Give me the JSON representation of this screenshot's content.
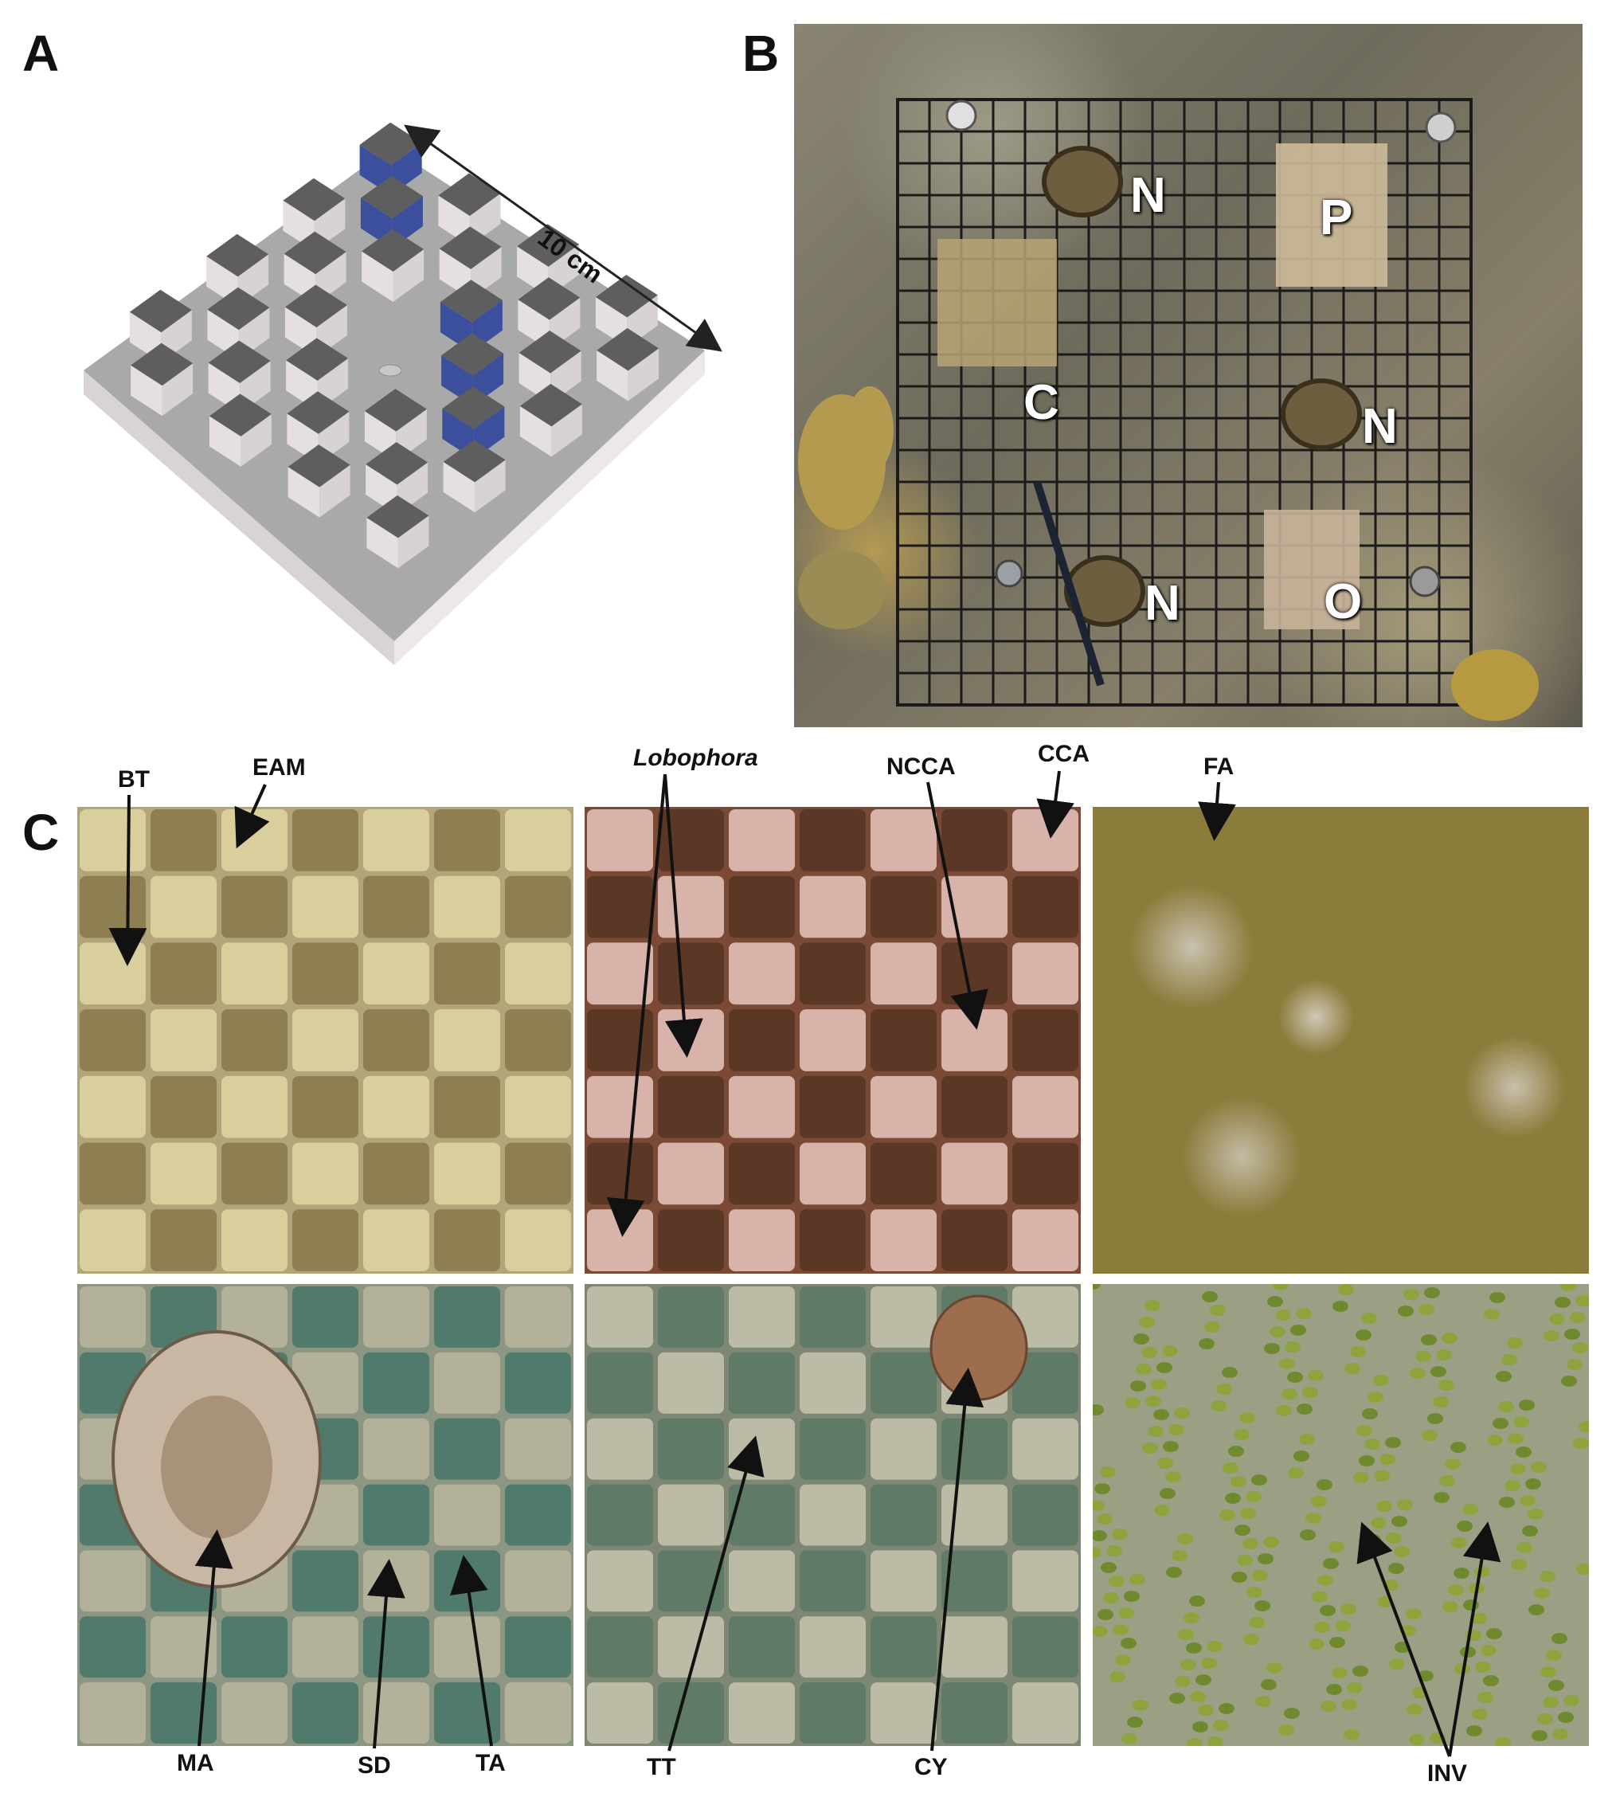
{
  "panels": {
    "a": "A",
    "b": "B",
    "c": "C"
  },
  "diagram": {
    "dimension": "10 cm",
    "colors": {
      "plate": "#a9a9a9",
      "cube_top": "#5e5e5e",
      "blue": "#3b4f9c",
      "side": "#e6dfe0"
    }
  },
  "photo_b": {
    "labels": [
      "N",
      "P",
      "C",
      "N",
      "N",
      "O"
    ]
  },
  "photo_c": {
    "top_labels": [
      "BT",
      "EAM",
      "Lobophora",
      "NCCA",
      "CCA",
      "FA"
    ],
    "bottom_labels": [
      "MA",
      "SD",
      "TA",
      "TT",
      "CY",
      "INV"
    ]
  }
}
